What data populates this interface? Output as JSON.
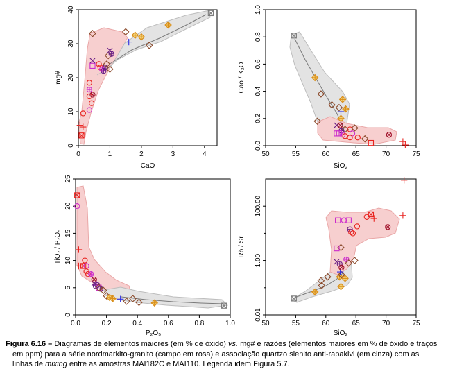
{
  "colors": {
    "rose_field": "#f7cfcf",
    "rose_edge": "#e9a7a7",
    "gray_field": "#e3e3e3",
    "gray_edge": "#bdbdbd",
    "mixing_line": "#7a7a7a",
    "red": "#e8231f",
    "magenta": "#cc2bcc",
    "purple": "#6a1f86",
    "darkred": "#a1122b",
    "blue": "#2a2adf",
    "brown": "#8b4a2b",
    "orange": "#d98e1a",
    "gray_marker": "#7d7d7d"
  },
  "chart_data": [
    {
      "id": "cao-mg",
      "type": "scatter",
      "xlabel": "CaO",
      "ylabel": "mg#",
      "xlim": [
        0,
        4.4
      ],
      "ylim": [
        0,
        40
      ],
      "xticks": [
        "0",
        "1",
        "2",
        "3",
        "4"
      ],
      "yticks": [
        "0",
        "10",
        "20",
        "30",
        "40"
      ],
      "xtick_values": [
        0,
        1,
        2,
        3,
        4
      ],
      "ytick_values": [
        0,
        10,
        20,
        30,
        40
      ],
      "points": [
        {
          "x": 0.05,
          "y": 6.0,
          "m": "plus",
          "c": "red"
        },
        {
          "x": 0.15,
          "y": 5.5,
          "m": "plus",
          "c": "red"
        },
        {
          "x": 0.1,
          "y": 3.0,
          "m": "sqx",
          "c": "red"
        },
        {
          "x": 0.15,
          "y": 9.5,
          "m": "circ",
          "c": "red"
        },
        {
          "x": 0.35,
          "y": 10.5,
          "m": "circ",
          "c": "magenta"
        },
        {
          "x": 0.35,
          "y": 14.5,
          "m": "circ",
          "c": "red"
        },
        {
          "x": 0.42,
          "y": 12.5,
          "m": "circ",
          "c": "red"
        },
        {
          "x": 0.35,
          "y": 18.5,
          "m": "circ",
          "c": "red"
        },
        {
          "x": 0.35,
          "y": 16.5,
          "m": "circplus",
          "c": "magenta"
        },
        {
          "x": 0.45,
          "y": 15.0,
          "m": "circx",
          "c": "darkred"
        },
        {
          "x": 0.45,
          "y": 23.5,
          "m": "sq",
          "c": "magenta"
        },
        {
          "x": 0.45,
          "y": 25.0,
          "m": "xm",
          "c": "purple"
        },
        {
          "x": 0.65,
          "y": 24.0,
          "m": "circ",
          "c": "red"
        },
        {
          "x": 0.7,
          "y": 23.0,
          "m": "circ",
          "c": "red"
        },
        {
          "x": 0.75,
          "y": 22.5,
          "m": "circplus",
          "c": "magenta"
        },
        {
          "x": 0.8,
          "y": 22.0,
          "m": "circplus",
          "c": "purple"
        },
        {
          "x": 0.85,
          "y": 23.0,
          "m": "circx",
          "c": "purple"
        },
        {
          "x": 0.9,
          "y": 24.0,
          "m": "diam",
          "c": "brown"
        },
        {
          "x": 0.95,
          "y": 26.5,
          "m": "diam",
          "c": "brown"
        },
        {
          "x": 1.0,
          "y": 28.0,
          "m": "xm",
          "c": "purple"
        },
        {
          "x": 1.05,
          "y": 27.0,
          "m": "circplus",
          "c": "purple"
        },
        {
          "x": 1.0,
          "y": 22.5,
          "m": "diam",
          "c": "brown"
        },
        {
          "x": 0.45,
          "y": 33.0,
          "m": "diam",
          "c": "brown"
        },
        {
          "x": 1.5,
          "y": 33.5,
          "m": "diam",
          "c": "brown"
        },
        {
          "x": 1.6,
          "y": 30.5,
          "m": "plus",
          "c": "blue"
        },
        {
          "x": 1.8,
          "y": 32.5,
          "m": "dplus",
          "c": "orange"
        },
        {
          "x": 2.25,
          "y": 29.5,
          "m": "diam",
          "c": "brown"
        },
        {
          "x": 2.0,
          "y": 32.0,
          "m": "dplus",
          "c": "orange"
        },
        {
          "x": 2.85,
          "y": 35.5,
          "m": "dplus",
          "c": "orange"
        },
        {
          "x": 4.2,
          "y": 39.0,
          "m": "sqx",
          "c": "gray_marker"
        }
      ]
    },
    {
      "id": "sio2-cao-k2o",
      "type": "scatter",
      "xlabel": "SiO₂",
      "ylabel": "Cao / K₂O",
      "xlim": [
        50,
        75
      ],
      "ylim": [
        0,
        1.0
      ],
      "xticks": [
        "50",
        "55",
        "60",
        "65",
        "70",
        "75"
      ],
      "yticks": [
        "0.0",
        "0.2",
        "0.4",
        "0.6",
        "0.8",
        "1.0"
      ],
      "xtick_values": [
        50,
        55,
        60,
        65,
        70,
        75
      ],
      "ytick_values": [
        0,
        0.2,
        0.4,
        0.6,
        0.8,
        1.0
      ],
      "points": [
        {
          "x": 54.7,
          "y": 0.81,
          "m": "sqx",
          "c": "gray_marker"
        },
        {
          "x": 58.2,
          "y": 0.5,
          "m": "dplus",
          "c": "orange"
        },
        {
          "x": 59.2,
          "y": 0.38,
          "m": "diam",
          "c": "brown"
        },
        {
          "x": 61.0,
          "y": 0.3,
          "m": "diam",
          "c": "brown"
        },
        {
          "x": 62.2,
          "y": 0.28,
          "m": "diam",
          "c": "brown"
        },
        {
          "x": 62.8,
          "y": 0.34,
          "m": "dplus",
          "c": "orange"
        },
        {
          "x": 63.3,
          "y": 0.27,
          "m": "dplus",
          "c": "orange"
        },
        {
          "x": 62.5,
          "y": 0.25,
          "m": "plus",
          "c": "blue"
        },
        {
          "x": 62.5,
          "y": 0.2,
          "m": "dplus",
          "c": "orange"
        },
        {
          "x": 58.6,
          "y": 0.18,
          "m": "diam",
          "c": "brown"
        },
        {
          "x": 61.8,
          "y": 0.15,
          "m": "xm",
          "c": "purple"
        },
        {
          "x": 62.4,
          "y": 0.15,
          "m": "circx",
          "c": "darkred"
        },
        {
          "x": 63.2,
          "y": 0.12,
          "m": "diam",
          "c": "brown"
        },
        {
          "x": 62.6,
          "y": 0.11,
          "m": "circplus",
          "c": "purple"
        },
        {
          "x": 62.2,
          "y": 0.09,
          "m": "sq",
          "c": "magenta"
        },
        {
          "x": 62.8,
          "y": 0.08,
          "m": "circplus",
          "c": "magenta"
        },
        {
          "x": 63.2,
          "y": 0.07,
          "m": "circ",
          "c": "red"
        },
        {
          "x": 64.0,
          "y": 0.12,
          "m": "circ",
          "c": "red"
        },
        {
          "x": 64.4,
          "y": 0.09,
          "m": "circ",
          "c": "magenta"
        },
        {
          "x": 64.0,
          "y": 0.06,
          "m": "circ",
          "c": "red"
        },
        {
          "x": 64.8,
          "y": 0.13,
          "m": "diam",
          "c": "brown"
        },
        {
          "x": 65.3,
          "y": 0.06,
          "m": "circ",
          "c": "red"
        },
        {
          "x": 66.5,
          "y": 0.05,
          "m": "diam",
          "c": "brown"
        },
        {
          "x": 67.5,
          "y": 0.02,
          "m": "sq",
          "c": "red"
        },
        {
          "x": 70.5,
          "y": 0.08,
          "m": "circx",
          "c": "darkred"
        },
        {
          "x": 72.8,
          "y": 0.03,
          "m": "plus",
          "c": "red"
        },
        {
          "x": 73.2,
          "y": 0.005,
          "m": "plus",
          "c": "red"
        },
        {
          "x": 61.8,
          "y": 0.09,
          "m": "sq",
          "c": "magenta"
        }
      ]
    },
    {
      "id": "p2o5-tio2",
      "type": "scatter",
      "xlabel": "P₂O₅",
      "ylabel": "TiO₂ / P₂O₅",
      "xlim": [
        0,
        1.0
      ],
      "ylim": [
        0,
        25
      ],
      "xticks": [
        "0.0",
        "0.2",
        "0.4",
        "0.6",
        "0.8",
        "1.0"
      ],
      "yticks": [
        "0",
        "5",
        "10",
        "15",
        "20",
        "25"
      ],
      "xtick_values": [
        0,
        0.2,
        0.4,
        0.6,
        0.8,
        1.0
      ],
      "ytick_values": [
        0,
        5,
        10,
        15,
        20,
        25
      ],
      "points": [
        {
          "x": 0.01,
          "y": 22.0,
          "m": "sqx",
          "c": "red"
        },
        {
          "x": 0.01,
          "y": 20.0,
          "m": "circ",
          "c": "magenta"
        },
        {
          "x": 0.02,
          "y": 12.0,
          "m": "plus",
          "c": "red"
        },
        {
          "x": 0.02,
          "y": 9.0,
          "m": "plus",
          "c": "red"
        },
        {
          "x": 0.05,
          "y": 9.0,
          "m": "sqx",
          "c": "red"
        },
        {
          "x": 0.06,
          "y": 10.0,
          "m": "circ",
          "c": "red"
        },
        {
          "x": 0.07,
          "y": 9.0,
          "m": "circ",
          "c": "magenta"
        },
        {
          "x": 0.07,
          "y": 8.0,
          "m": "circ",
          "c": "red"
        },
        {
          "x": 0.08,
          "y": 7.5,
          "m": "circ",
          "c": "red"
        },
        {
          "x": 0.1,
          "y": 7.5,
          "m": "circplus",
          "c": "magenta"
        },
        {
          "x": 0.12,
          "y": 6.5,
          "m": "circx",
          "c": "darkred"
        },
        {
          "x": 0.12,
          "y": 5.8,
          "m": "xm",
          "c": "purple"
        },
        {
          "x": 0.13,
          "y": 5.3,
          "m": "circplus",
          "c": "purple"
        },
        {
          "x": 0.14,
          "y": 5.5,
          "m": "circx",
          "c": "purple"
        },
        {
          "x": 0.15,
          "y": 5.0,
          "m": "sq",
          "c": "magenta"
        },
        {
          "x": 0.16,
          "y": 4.8,
          "m": "circplus",
          "c": "purple"
        },
        {
          "x": 0.18,
          "y": 4.5,
          "m": "diam",
          "c": "brown"
        },
        {
          "x": 0.2,
          "y": 3.5,
          "m": "diam",
          "c": "brown"
        },
        {
          "x": 0.22,
          "y": 3.2,
          "m": "dplus",
          "c": "orange"
        },
        {
          "x": 0.24,
          "y": 3.0,
          "m": "dplus",
          "c": "orange"
        },
        {
          "x": 0.29,
          "y": 2.9,
          "m": "plus",
          "c": "blue"
        },
        {
          "x": 0.33,
          "y": 2.5,
          "m": "diam",
          "c": "brown"
        },
        {
          "x": 0.37,
          "y": 3.0,
          "m": "diam",
          "c": "brown"
        },
        {
          "x": 0.41,
          "y": 2.3,
          "m": "diam",
          "c": "brown"
        },
        {
          "x": 0.51,
          "y": 2.2,
          "m": "dplus",
          "c": "orange"
        },
        {
          "x": 0.96,
          "y": 1.7,
          "m": "sqx",
          "c": "gray_marker"
        },
        {
          "x": 0.15,
          "y": 5.0,
          "m": "diam",
          "c": "brown"
        }
      ]
    },
    {
      "id": "sio2-rb-sr",
      "type": "scatter",
      "xlabel": "SiO₂",
      "ylabel": "Rb / Sr",
      "xlim": [
        50,
        75
      ],
      "ylim": [
        0.01,
        1000
      ],
      "yscale": "log",
      "xticks": [
        "50",
        "55",
        "60",
        "65",
        "70",
        "75"
      ],
      "yticks": [
        "0.01",
        "1.00",
        "100.00"
      ],
      "xtick_values": [
        50,
        55,
        60,
        65,
        70,
        75
      ],
      "ytick_values": [
        0.01,
        1,
        100
      ],
      "ytick_minor": [
        0.1,
        10
      ],
      "points": [
        {
          "x": 54.7,
          "y": 0.04,
          "m": "sqx",
          "c": "gray_marker"
        },
        {
          "x": 58.2,
          "y": 0.07,
          "m": "dplus",
          "c": "orange"
        },
        {
          "x": 59.3,
          "y": 0.12,
          "m": "diam",
          "c": "brown"
        },
        {
          "x": 59.2,
          "y": 0.18,
          "m": "diam",
          "c": "brown"
        },
        {
          "x": 60.3,
          "y": 0.25,
          "m": "diam",
          "c": "brown"
        },
        {
          "x": 62.5,
          "y": 0.11,
          "m": "dplus",
          "c": "orange"
        },
        {
          "x": 62.3,
          "y": 0.25,
          "m": "dplus",
          "c": "orange"
        },
        {
          "x": 62.6,
          "y": 0.3,
          "m": "diam",
          "c": "brown"
        },
        {
          "x": 62.4,
          "y": 0.38,
          "m": "plus",
          "c": "blue"
        },
        {
          "x": 63.2,
          "y": 0.22,
          "m": "dplus",
          "c": "orange"
        },
        {
          "x": 61.8,
          "y": 0.9,
          "m": "xm",
          "c": "purple"
        },
        {
          "x": 62.3,
          "y": 0.75,
          "m": "circplus",
          "c": "purple"
        },
        {
          "x": 62.6,
          "y": 0.55,
          "m": "circx",
          "c": "darkred"
        },
        {
          "x": 63.4,
          "y": 1.1,
          "m": "circplus",
          "c": "magenta"
        },
        {
          "x": 63.8,
          "y": 0.8,
          "m": "diam",
          "c": "brown"
        },
        {
          "x": 64.8,
          "y": 1.0,
          "m": "diam",
          "c": "brown"
        },
        {
          "x": 62.5,
          "y": 3.0,
          "m": "diam",
          "c": "brown"
        },
        {
          "x": 61.8,
          "y": 2.8,
          "m": "sq",
          "c": "magenta"
        },
        {
          "x": 62.0,
          "y": 30.0,
          "m": "sq",
          "c": "magenta"
        },
        {
          "x": 63.0,
          "y": 30.0,
          "m": "circ",
          "c": "magenta"
        },
        {
          "x": 63.8,
          "y": 30.0,
          "m": "sq",
          "c": "magenta"
        },
        {
          "x": 64.0,
          "y": 14.0,
          "m": "circplus",
          "c": "purple"
        },
        {
          "x": 64.2,
          "y": 11.0,
          "m": "circ",
          "c": "red"
        },
        {
          "x": 64.5,
          "y": 10.0,
          "m": "circ",
          "c": "red"
        },
        {
          "x": 65.2,
          "y": 18.0,
          "m": "circ",
          "c": "red"
        },
        {
          "x": 66.8,
          "y": 40.0,
          "m": "circ",
          "c": "red"
        },
        {
          "x": 67.5,
          "y": 50.0,
          "m": "sqx",
          "c": "red"
        },
        {
          "x": 68.0,
          "y": 35.0,
          "m": "plus",
          "c": "red"
        },
        {
          "x": 70.3,
          "y": 17.0,
          "m": "circx",
          "c": "darkred"
        },
        {
          "x": 72.8,
          "y": 45.0,
          "m": "plus",
          "c": "red"
        },
        {
          "x": 73.0,
          "y": 900.0,
          "m": "plus",
          "c": "red"
        }
      ]
    }
  ],
  "caption": {
    "fig_label": "Figura 6.16",
    "dash": " – ",
    "text1": "Diagramas de elementos maiores (em % de óxido) ",
    "vs": "vs.",
    "text2": " mg# e razões (elementos maiores em % de óxido e traços",
    "text3": "em ppm) para a série nordmarkito-granito (campo em rosa) e associação quartzo sienito anti-rapakivi (em cinza) com as",
    "text4": "linhas de ",
    "mixing": "mixing",
    "text5": " entre as amostras MAI182C e MAI110. Legenda idem Figura 5.7."
  }
}
